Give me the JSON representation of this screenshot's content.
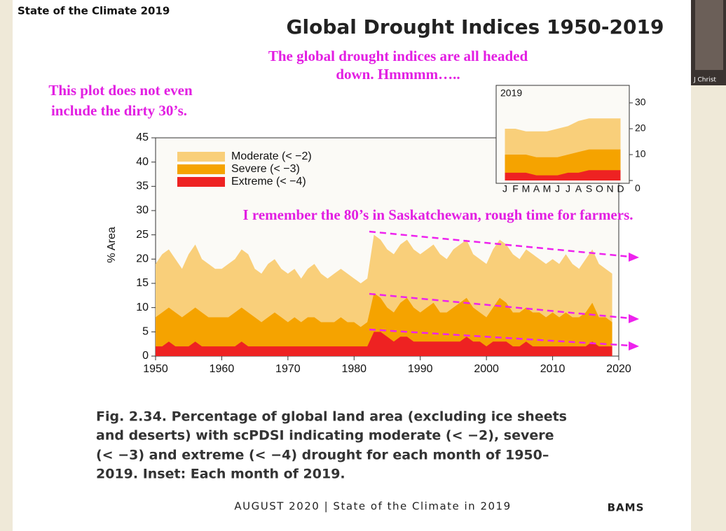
{
  "slide": {
    "header": "State of the Climate 2019",
    "annotations": [
      "The global drought indices are all headed",
      "down. Hmmmm…..",
      "This plot does not even",
      "include the dirty 30’s.",
      "I remember the 80’s in Saskatchewan, rough time for farmers."
    ],
    "caption": [
      "Fig. 2.34. Percentage of global land area (excluding ice sheets",
      "and deserts) with scPDSI indicating moderate (< −2), severe",
      "(< −3) and extreme (< −4) drought for each month of 1950–",
      "2019. Inset: Each month of 2019."
    ],
    "footer": "AUGUST 2020 | State of the Climate in 2019",
    "logo": "BAMS"
  },
  "video_label": "J Christ",
  "chart_data": [
    {
      "type": "area",
      "title": "Global Drought Indices 1950-2019",
      "y_label": "% Area",
      "x": [
        1950,
        1951,
        1952,
        1953,
        1954,
        1955,
        1956,
        1957,
        1958,
        1959,
        1960,
        1961,
        1962,
        1963,
        1964,
        1965,
        1966,
        1967,
        1968,
        1969,
        1970,
        1971,
        1972,
        1973,
        1974,
        1975,
        1976,
        1977,
        1978,
        1979,
        1980,
        1981,
        1982,
        1983,
        1984,
        1985,
        1986,
        1987,
        1988,
        1989,
        1990,
        1991,
        1992,
        1993,
        1994,
        1995,
        1996,
        1997,
        1998,
        1999,
        2000,
        2001,
        2002,
        2003,
        2004,
        2005,
        2006,
        2007,
        2008,
        2009,
        2010,
        2011,
        2012,
        2013,
        2014,
        2015,
        2016,
        2017,
        2018,
        2019
      ],
      "series": [
        {
          "name": "Moderate (< −2)",
          "color": "#f9cf7a",
          "values": [
            19,
            21,
            22,
            20,
            18,
            21,
            23,
            20,
            19,
            18,
            18,
            19,
            20,
            22,
            21,
            18,
            17,
            19,
            20,
            18,
            17,
            18,
            16,
            18,
            19,
            17,
            16,
            17,
            18,
            17,
            16,
            15,
            16,
            25,
            24,
            22,
            21,
            23,
            24,
            22,
            21,
            22,
            23,
            21,
            20,
            22,
            23,
            24,
            21,
            20,
            19,
            22,
            24,
            23,
            21,
            20,
            22,
            21,
            20,
            19,
            20,
            19,
            21,
            19,
            18,
            20,
            22,
            19,
            18,
            17
          ]
        },
        {
          "name": "Severe (< −3)",
          "color": "#f5a300",
          "values": [
            8,
            9,
            10,
            9,
            8,
            9,
            10,
            9,
            8,
            8,
            8,
            8,
            9,
            10,
            9,
            8,
            7,
            8,
            9,
            8,
            7,
            8,
            7,
            8,
            8,
            7,
            7,
            7,
            8,
            7,
            7,
            6,
            7,
            13,
            12,
            10,
            9,
            11,
            12,
            10,
            9,
            10,
            11,
            9,
            9,
            10,
            11,
            12,
            10,
            9,
            8,
            10,
            12,
            11,
            9,
            9,
            10,
            9,
            9,
            8,
            9,
            8,
            9,
            8,
            8,
            9,
            11,
            8,
            8,
            7
          ]
        },
        {
          "name": "Extreme (< −4)",
          "color": "#ee2222",
          "values": [
            2,
            2,
            3,
            2,
            2,
            2,
            3,
            2,
            2,
            2,
            2,
            2,
            2,
            3,
            2,
            2,
            2,
            2,
            2,
            2,
            2,
            2,
            2,
            2,
            2,
            2,
            2,
            2,
            2,
            2,
            2,
            2,
            2,
            5,
            5,
            4,
            3,
            4,
            4,
            3,
            3,
            3,
            3,
            3,
            3,
            3,
            3,
            4,
            3,
            3,
            2,
            3,
            3,
            3,
            2,
            2,
            3,
            2,
            2,
            2,
            2,
            2,
            2,
            2,
            2,
            2,
            3,
            2,
            2,
            2
          ]
        }
      ],
      "xlim": [
        1950,
        2020
      ],
      "xticks": [
        1950,
        1960,
        1970,
        1980,
        1990,
        2000,
        2010,
        2020
      ],
      "ylim": [
        0,
        45
      ],
      "yticks": [
        0,
        5,
        10,
        15,
        20,
        25,
        30,
        35,
        40,
        45
      ],
      "legend": "upper left"
    },
    {
      "type": "area",
      "title": "2019",
      "categories": [
        "J",
        "F",
        "M",
        "A",
        "M",
        "J",
        "J",
        "A",
        "S",
        "O",
        "N",
        "D"
      ],
      "series": [
        {
          "color": "#f9cf7a",
          "values": [
            20,
            20,
            19,
            19,
            19,
            20,
            21,
            23,
            24,
            24,
            24,
            24
          ]
        },
        {
          "color": "#f5a300",
          "values": [
            10,
            10,
            10,
            9,
            9,
            9,
            10,
            11,
            12,
            12,
            12,
            12
          ]
        },
        {
          "color": "#ee2222",
          "values": [
            3,
            3,
            3,
            2,
            2,
            2,
            3,
            3,
            4,
            4,
            4,
            4
          ]
        }
      ],
      "ylim": [
        0,
        35
      ],
      "yticks": [
        0,
        10,
        20,
        30
      ]
    }
  ]
}
